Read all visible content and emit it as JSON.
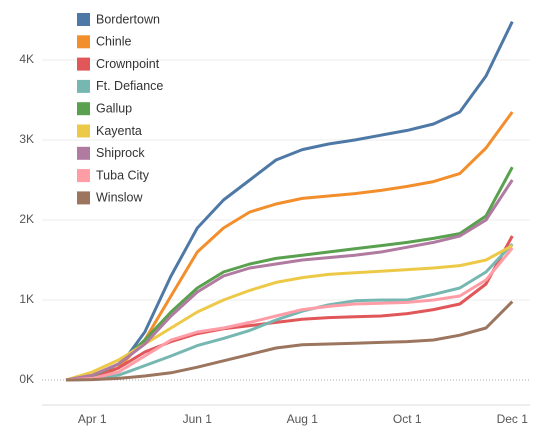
{
  "chart_data": {
    "type": "line",
    "categories": [
      "Mar 15",
      "Apr 1",
      "Apr 15",
      "May 1",
      "May 15",
      "Jun 1",
      "Jun 15",
      "Jul 1",
      "Jul 15",
      "Aug 1",
      "Aug 15",
      "Sep 1",
      "Sep 15",
      "Oct 1",
      "Oct 15",
      "Nov 1",
      "Nov 15",
      "Dec 1"
    ],
    "xticks": [
      "Apr 1",
      "Jun 1",
      "Aug 1",
      "Oct 1",
      "Dec 1"
    ],
    "ylim": [
      -150,
      4600
    ],
    "yticks": [
      {
        "value": 0,
        "label": "0K"
      },
      {
        "value": 1000,
        "label": "1K"
      },
      {
        "value": 2000,
        "label": "2K"
      },
      {
        "value": 3000,
        "label": "3K"
      },
      {
        "value": 4000,
        "label": "4K"
      }
    ],
    "grid": true,
    "legend": "top-left",
    "series": [
      {
        "name": "Bordertown",
        "color": "#4e79a7",
        "values": [
          0,
          20,
          150,
          600,
          1300,
          1900,
          2250,
          2500,
          2750,
          2880,
          2950,
          3000,
          3060,
          3120,
          3200,
          3350,
          3800,
          4480
        ]
      },
      {
        "name": "Chinle",
        "color": "#f28e2b",
        "values": [
          0,
          30,
          150,
          500,
          1050,
          1600,
          1900,
          2100,
          2200,
          2270,
          2300,
          2330,
          2370,
          2420,
          2480,
          2580,
          2900,
          3350
        ]
      },
      {
        "name": "Crownpoint",
        "color": "#e15759",
        "values": [
          0,
          40,
          150,
          350,
          480,
          580,
          640,
          680,
          720,
          760,
          780,
          790,
          800,
          830,
          880,
          950,
          1200,
          1800
        ]
      },
      {
        "name": "Ft. Defiance",
        "color": "#76b7b2",
        "values": [
          0,
          10,
          60,
          180,
          300,
          430,
          520,
          620,
          750,
          860,
          940,
          990,
          1000,
          1000,
          1070,
          1150,
          1350,
          1700
        ]
      },
      {
        "name": "Gallup",
        "color": "#59a14f",
        "values": [
          0,
          50,
          200,
          500,
          850,
          1150,
          1350,
          1450,
          1520,
          1560,
          1600,
          1640,
          1680,
          1720,
          1770,
          1830,
          2050,
          2660
        ]
      },
      {
        "name": "Kayenta",
        "color": "#edc948",
        "values": [
          0,
          100,
          250,
          450,
          650,
          850,
          1000,
          1120,
          1220,
          1280,
          1320,
          1340,
          1360,
          1380,
          1400,
          1430,
          1500,
          1680
        ]
      },
      {
        "name": "Shiprock",
        "color": "#b07aa1",
        "values": [
          0,
          60,
          200,
          450,
          800,
          1100,
          1300,
          1400,
          1450,
          1500,
          1530,
          1560,
          1600,
          1660,
          1720,
          1800,
          2000,
          2500
        ]
      },
      {
        "name": "Tuba City",
        "color": "#ff9da7",
        "values": [
          0,
          20,
          100,
          300,
          500,
          600,
          650,
          720,
          800,
          880,
          920,
          950,
          960,
          970,
          1000,
          1050,
          1250,
          1650
        ]
      },
      {
        "name": "Winslow",
        "color": "#9c755f",
        "values": [
          0,
          5,
          20,
          50,
          90,
          160,
          240,
          320,
          400,
          440,
          450,
          460,
          470,
          480,
          500,
          560,
          650,
          980
        ]
      }
    ]
  }
}
